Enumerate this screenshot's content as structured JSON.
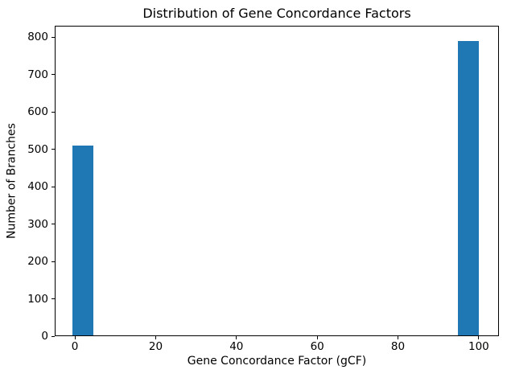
{
  "chart_data": {
    "type": "bar",
    "title": "Distribution of Gene Concordance Factors",
    "xlabel": "Gene Concordance Factor (gCF)",
    "ylabel": "Number of Branches",
    "bars": [
      {
        "x_start": -0.6,
        "x_end": 4.6,
        "x_center": 2.0,
        "count": 510
      },
      {
        "x_start": 94.9,
        "x_end": 100.1,
        "x_center": 97.5,
        "count": 790
      }
    ],
    "bar_width_units": 5.2,
    "xticks": [
      0,
      20,
      40,
      60,
      80,
      100
    ],
    "yticks": [
      0,
      100,
      200,
      300,
      400,
      500,
      600,
      700,
      800
    ],
    "xlim": [
      -5,
      105
    ],
    "ylim": [
      0,
      830
    ],
    "grid": false,
    "legend_position": "none",
    "bar_color": "#1f77b4",
    "spine_color": "#000000",
    "text_color": "#000000",
    "background_color": "#ffffff"
  }
}
